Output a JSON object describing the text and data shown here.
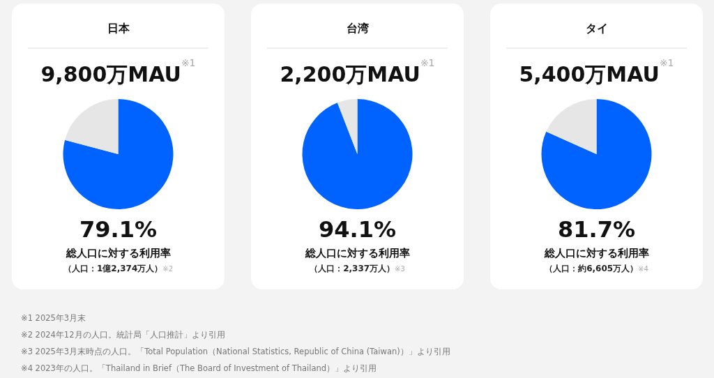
{
  "chart_data": [
    {
      "type": "pie",
      "title": "日本",
      "subtitle": "9,800万MAU$^{※1}$",
      "categories": [
        null,
        null
      ],
      "values": [
        79.1,
        20.9
      ],
      "colors": [
        "#0062ff",
        "#e6e6e6"
      ],
      "value_labels": [
        "79.1%",
        null
      ],
      "annotations": [
        "総人口に対する利用率",
        "（人口：1億2,374万人）$_{※2}$"
      ]
    },
    {
      "type": "pie",
      "title": "台湾",
      "subtitle": "2,200万MAU$^{※1}$",
      "categories": [
        null,
        null
      ],
      "values": [
        94.1,
        5.9
      ],
      "colors": [
        "#0062ff",
        "#e6e6e6"
      ],
      "value_labels": [
        "94.1%",
        null
      ],
      "annotations": [
        "総人口に対する利用率",
        "（人口：2,337万人）$_{※3}$"
      ]
    },
    {
      "type": "pie",
      "title": "タイ",
      "subtitle": "5,400万MAU$^{※1}$",
      "categories": [
        null,
        null
      ],
      "values": [
        81.7,
        18.3
      ],
      "colors": [
        "#0062ff",
        "#e6e6e6"
      ],
      "value_labels": [
        "81.7%",
        null
      ],
      "annotations": [
        "総人口に対する利用率",
        "（人口：約6,605万人）$_{※4}$"
      ]
    },
    {
      "type": "other",
      "annotations": [
        "※1 2025年3月末",
        "※2 2024年12月の人口。統計局「人口推計」より引用",
        "※3 2025年3月末時点の人口。「Total Population（National Statistics, Republic of China (Taiwan)）」より引用",
        "※4 2023年の人口。「Thailand in Brief（The Board of Investment of Thailand）」より引用"
      ]
    }
  ]
}
